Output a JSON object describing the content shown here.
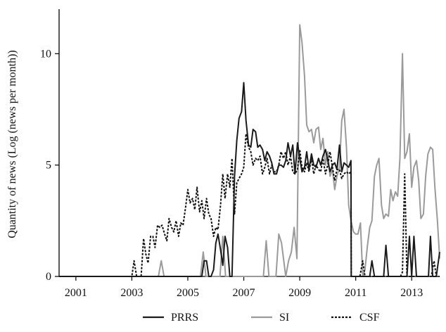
{
  "chart_data": {
    "type": "line",
    "title": "",
    "xlabel": "",
    "ylabel": "Quantity of news (Log (news per month))",
    "xlim": [
      2000.4,
      2014.0
    ],
    "ylim": [
      0,
      12
    ],
    "x_ticks": [
      2001,
      2003,
      2005,
      2007,
      2009,
      2011,
      2013
    ],
    "x_tick_labels": [
      "2001",
      "2003",
      "2005",
      "2007",
      "2009",
      "2011",
      "2013"
    ],
    "y_ticks": [
      0,
      5,
      10
    ],
    "y_tick_labels": [
      "0",
      "5",
      "10"
    ],
    "grid": false,
    "legend_position": "bottom",
    "series": [
      {
        "name": "PRRS",
        "color": "#1a1a1a",
        "dash": "solid",
        "x": [
          2000.4,
          2005.5,
          2005.58,
          2005.67,
          2005.75,
          2005.83,
          2005.92,
          2006.0,
          2006.08,
          2006.17,
          2006.25,
          2006.33,
          2006.42,
          2006.5,
          2006.58,
          2006.67,
          2006.75,
          2006.83,
          2006.92,
          2007.0,
          2007.08,
          2007.17,
          2007.25,
          2007.33,
          2007.42,
          2007.5,
          2007.58,
          2007.67,
          2007.75,
          2007.83,
          2007.92,
          2008.0,
          2008.08,
          2008.17,
          2008.25,
          2008.33,
          2008.42,
          2008.5,
          2008.58,
          2008.67,
          2008.75,
          2008.83,
          2008.92,
          2009.0,
          2009.08,
          2009.17,
          2009.25,
          2009.33,
          2009.42,
          2009.5,
          2009.58,
          2009.67,
          2009.75,
          2009.83,
          2009.92,
          2010.0,
          2010.08,
          2010.17,
          2010.25,
          2010.33,
          2010.42,
          2010.5,
          2010.58,
          2010.67,
          2010.75,
          2010.83,
          2010.84,
          2011.5,
          2011.58,
          2011.67,
          2012.0,
          2012.08,
          2012.17,
          2012.83,
          2012.92,
          2013.0,
          2013.08,
          2013.17,
          2013.6,
          2013.67,
          2013.75,
          2013.88,
          2014.0
        ],
        "y": [
          0,
          0,
          0.7,
          0.7,
          0,
          0,
          0.3,
          1.5,
          1.9,
          1.2,
          0.5,
          1.8,
          1.3,
          0,
          0,
          4.5,
          6.1,
          7.1,
          7.4,
          8.7,
          7.0,
          5.9,
          5.8,
          6.6,
          6.5,
          5.8,
          5.9,
          5.7,
          5.2,
          5.6,
          5.4,
          5.1,
          4.6,
          4.6,
          5.0,
          5.0,
          4.9,
          5.2,
          6.0,
          5.4,
          5.9,
          4.6,
          6.0,
          5.3,
          4.7,
          4.9,
          5.6,
          4.8,
          5.5,
          5.0,
          4.9,
          5.3,
          5.0,
          5.4,
          5.7,
          5.2,
          4.7,
          5.0,
          5.1,
          4.8,
          5.9,
          4.7,
          5.1,
          5.0,
          4.9,
          5.2,
          0,
          0,
          0.7,
          0,
          0,
          1.4,
          0,
          0,
          1.8,
          0,
          1.8,
          0,
          0,
          1.8,
          0,
          0,
          1.1
        ]
      },
      {
        "name": "SI",
        "color": "#9a9a9a",
        "dash": "solid",
        "x": [
          2000.4,
          2003.95,
          2004.05,
          2004.15,
          2005.45,
          2005.55,
          2005.65,
          2006.15,
          2006.25,
          2006.35,
          2007.7,
          2007.8,
          2007.9,
          2008.15,
          2008.25,
          2008.35,
          2008.5,
          2008.6,
          2008.7,
          2008.8,
          2008.9,
          2009.0,
          2009.08,
          2009.17,
          2009.25,
          2009.33,
          2009.42,
          2009.5,
          2009.58,
          2009.67,
          2009.75,
          2009.83,
          2009.92,
          2010.0,
          2010.08,
          2010.17,
          2010.25,
          2010.33,
          2010.42,
          2010.5,
          2010.58,
          2010.67,
          2010.75,
          2010.83,
          2010.92,
          2011.0,
          2011.08,
          2011.17,
          2011.25,
          2011.33,
          2011.42,
          2011.5,
          2011.58,
          2011.67,
          2011.75,
          2011.83,
          2011.92,
          2012.0,
          2012.08,
          2012.17,
          2012.25,
          2012.33,
          2012.42,
          2012.5,
          2012.58,
          2012.67,
          2012.75,
          2012.83,
          2012.92,
          2013.0,
          2013.08,
          2013.17,
          2013.25,
          2013.33,
          2013.42,
          2013.5,
          2013.58,
          2013.67,
          2013.75,
          2013.83,
          2013.92,
          2014.0
        ],
        "y": [
          0,
          0,
          0.7,
          0,
          0,
          1.1,
          0,
          0,
          1.8,
          0,
          0,
          1.6,
          0,
          0,
          1.9,
          1.5,
          0,
          0.7,
          1.1,
          2.2,
          0.8,
          11.3,
          10.5,
          9.0,
          6.8,
          6.5,
          6.6,
          6.0,
          6.6,
          6.7,
          5.7,
          6.2,
          5.0,
          5.6,
          4.5,
          4.8,
          3.9,
          4.5,
          4.9,
          7.0,
          7.5,
          5.8,
          3.2,
          2.5,
          2.0,
          1.9,
          1.9,
          2.4,
          0,
          0.3,
          1.4,
          2.2,
          2.5,
          4.5,
          5.0,
          5.3,
          3.2,
          2.6,
          2.8,
          2.7,
          3.9,
          3.4,
          3.8,
          3.6,
          5.3,
          10.0,
          5.3,
          5.6,
          6.4,
          4.0,
          4.9,
          5.2,
          4.3,
          2.6,
          2.8,
          4.5,
          5.5,
          5.8,
          5.7,
          4.0,
          2.5,
          0.8
        ]
      },
      {
        "name": "CSF",
        "color": "#111111",
        "dash": "dashed",
        "x": [
          2000.4,
          2002.4,
          2003.0,
          2003.08,
          2003.17,
          2003.25,
          2003.33,
          2003.42,
          2003.5,
          2003.58,
          2003.67,
          2003.75,
          2003.83,
          2003.92,
          2004.0,
          2004.08,
          2004.17,
          2004.25,
          2004.33,
          2004.42,
          2004.5,
          2004.58,
          2004.67,
          2004.75,
          2004.83,
          2004.92,
          2005.0,
          2005.08,
          2005.17,
          2005.25,
          2005.33,
          2005.42,
          2005.5,
          2005.58,
          2005.67,
          2005.75,
          2005.83,
          2005.92,
          2006.0,
          2006.08,
          2006.17,
          2006.25,
          2006.33,
          2006.42,
          2006.5,
          2006.58,
          2006.67,
          2006.75,
          2006.83,
          2006.92,
          2007.0,
          2007.08,
          2007.17,
          2007.25,
          2007.33,
          2007.42,
          2007.5,
          2007.58,
          2007.67,
          2007.75,
          2007.83,
          2007.92,
          2008.0,
          2008.08,
          2008.17,
          2008.25,
          2008.33,
          2008.42,
          2008.5,
          2008.58,
          2008.67,
          2008.75,
          2008.83,
          2008.92,
          2009.0,
          2009.08,
          2009.17,
          2009.25,
          2009.33,
          2009.42,
          2009.5,
          2009.58,
          2009.67,
          2009.75,
          2009.83,
          2009.92,
          2010.0,
          2010.08,
          2010.17,
          2010.25,
          2010.33,
          2010.42,
          2010.5,
          2010.58,
          2010.67,
          2010.75,
          2010.83,
          2010.84,
          2011.15,
          2011.25,
          2011.33,
          2012.6,
          2012.67,
          2012.75,
          2012.83,
          2012.9,
          2012.95,
          2013.7,
          2013.8,
          2013.88,
          2014.0
        ],
        "y": [
          0,
          0,
          0,
          0.7,
          0,
          0,
          0,
          1.7,
          1.0,
          0.6,
          1.8,
          1.8,
          1.3,
          2.3,
          2.2,
          2.3,
          1.9,
          1.6,
          2.6,
          2.2,
          2.0,
          2.5,
          1.8,
          2.4,
          2.3,
          3.1,
          3.9,
          3.3,
          3.5,
          3.0,
          4.0,
          2.9,
          3.4,
          2.6,
          3.5,
          2.8,
          2.6,
          1.8,
          2.2,
          2.1,
          3.2,
          4.6,
          3.5,
          4.6,
          4.0,
          5.3,
          2.8,
          4.2,
          4.4,
          4.6,
          4.9,
          6.4,
          5.8,
          5.6,
          5.0,
          5.3,
          5.2,
          5.4,
          4.6,
          4.9,
          5.3,
          4.6,
          5.0,
          4.7,
          4.7,
          5.0,
          5.6,
          5.3,
          5.6,
          5.0,
          5.4,
          4.7,
          4.6,
          4.8,
          5.7,
          4.9,
          4.7,
          5.1,
          4.7,
          5.3,
          4.6,
          5.0,
          4.8,
          4.7,
          5.3,
          4.6,
          5.0,
          5.6,
          4.9,
          4.3,
          4.8,
          4.8,
          4.4,
          4.6,
          4.7,
          4.6,
          4.7,
          0,
          0,
          0.7,
          0,
          0,
          0.2,
          4.6,
          0,
          0,
          0,
          0,
          0.7,
          0,
          0
        ]
      }
    ]
  }
}
